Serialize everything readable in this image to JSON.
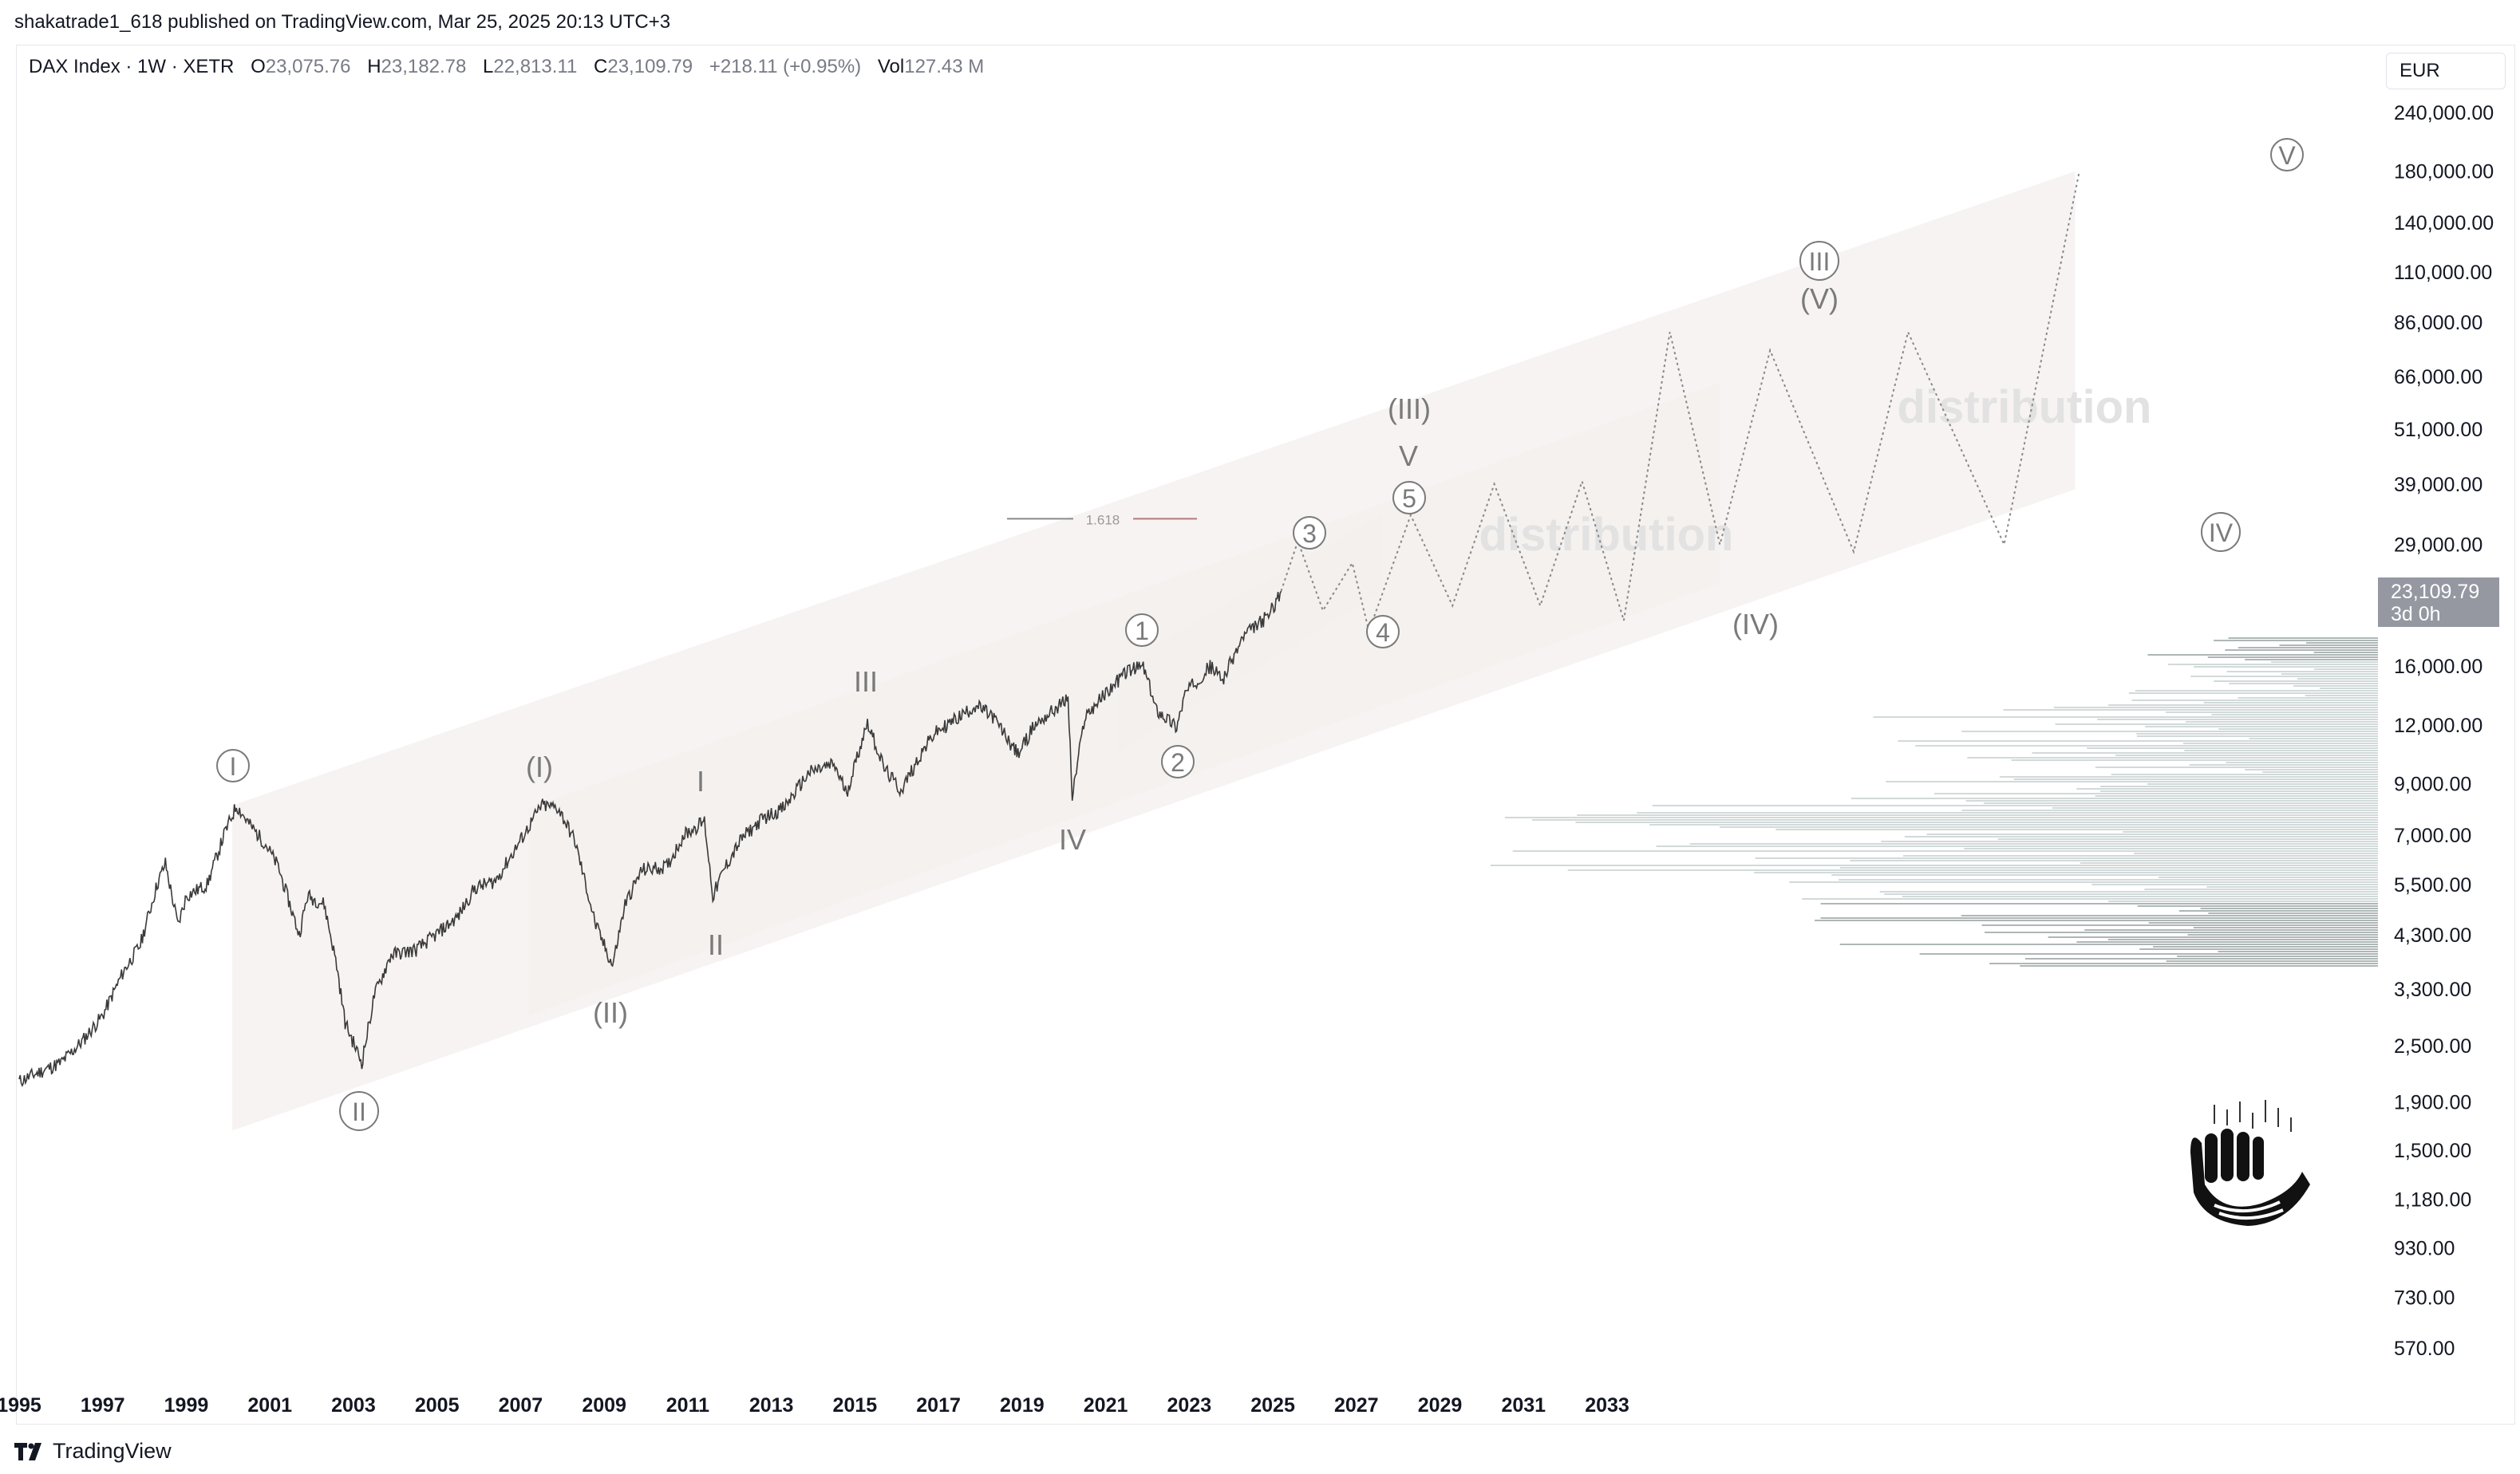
{
  "header": {
    "published_text": "shakatrade1_618 published on TradingView.com, Mar 25, 2025 20:13 UTC+3"
  },
  "legend": {
    "symbol": "DAX Index · 1W · XETR",
    "o_label": "O",
    "o_value": "23,075.76",
    "h_label": "H",
    "h_value": "23,182.78",
    "l_label": "L",
    "l_value": "22,813.11",
    "c_label": "C",
    "c_value": "23,109.79",
    "change": "+218.11 (+0.95%)",
    "vol_label": "Vol",
    "vol_value": "127.43 M"
  },
  "currency": "EUR",
  "price_tag": {
    "price": "23,109.79",
    "countdown": "3d 0h"
  },
  "footer": {
    "brand": "TradingView"
  },
  "colors": {
    "candles": "#3a3a3a",
    "projection": "#888888",
    "channel_fill": "#f3eeec",
    "distribution_text": "#e2e2e2",
    "label": "#7a7a7a",
    "fib_line": "#b27a7a"
  },
  "chart_data": {
    "type": "line",
    "instrument": "DAX Index",
    "scale": "log",
    "y_ticks": [
      "240,000.00",
      "180,000.00",
      "140,000.00",
      "110,000.00",
      "86,000.00",
      "66,000.00",
      "51,000.00",
      "39,000.00",
      "29,000.00",
      "16,000.00",
      "12,000.00",
      "9,000.00",
      "7,000.00",
      "5,500.00",
      "4,300.00",
      "3,300.00",
      "2,500.00",
      "1,900.00",
      "1,500.00",
      "1,180.00",
      "930.00",
      "730.00",
      "570.00"
    ],
    "x_ticks": [
      "1995",
      "1997",
      "1999",
      "2001",
      "2003",
      "2005",
      "2007",
      "2009",
      "2011",
      "2013",
      "2015",
      "2017",
      "2019",
      "2021",
      "2023",
      "2025",
      "2027",
      "2029",
      "2031",
      "2033"
    ],
    "price_series": [
      [
        1995.0,
        2100
      ],
      [
        1995.5,
        2200
      ],
      [
        1996.0,
        2300
      ],
      [
        1996.5,
        2550
      ],
      [
        1997.0,
        2900
      ],
      [
        1997.5,
        3600
      ],
      [
        1997.9,
        4100
      ],
      [
        1998.3,
        5500
      ],
      [
        1998.5,
        6100
      ],
      [
        1998.8,
        4500
      ],
      [
        1999.0,
        5200
      ],
      [
        1999.5,
        5500
      ],
      [
        1999.9,
        7000
      ],
      [
        2000.2,
        8100
      ],
      [
        2000.5,
        7400
      ],
      [
        2000.9,
        6700
      ],
      [
        2001.2,
        6000
      ],
      [
        2001.7,
        4300
      ],
      [
        2001.9,
        5200
      ],
      [
        2002.3,
        5000
      ],
      [
        2002.6,
        3700
      ],
      [
        2002.8,
        2800
      ],
      [
        2003.2,
        2300
      ],
      [
        2003.5,
        3200
      ],
      [
        2003.9,
        3900
      ],
      [
        2004.5,
        4000
      ],
      [
        2004.9,
        4250
      ],
      [
        2005.5,
        4700
      ],
      [
        2005.9,
        5400
      ],
      [
        2006.4,
        5600
      ],
      [
        2006.9,
        6600
      ],
      [
        2007.5,
        8100
      ],
      [
        2007.9,
        8000
      ],
      [
        2008.3,
        6800
      ],
      [
        2008.8,
        4500
      ],
      [
        2009.2,
        3700
      ],
      [
        2009.5,
        5000
      ],
      [
        2009.9,
        5900
      ],
      [
        2010.5,
        6000
      ],
      [
        2010.9,
        7000
      ],
      [
        2011.4,
        7500
      ],
      [
        2011.6,
        5200
      ],
      [
        2011.9,
        6000
      ],
      [
        2012.3,
        6900
      ],
      [
        2012.8,
        7600
      ],
      [
        2013.3,
        8000
      ],
      [
        2013.9,
        9500
      ],
      [
        2014.5,
        9900
      ],
      [
        2014.8,
        8600
      ],
      [
        2015.3,
        12200
      ],
      [
        2015.7,
        9700
      ],
      [
        2016.1,
        8700
      ],
      [
        2016.6,
        10500
      ],
      [
        2016.9,
        11500
      ],
      [
        2017.5,
        12500
      ],
      [
        2017.9,
        13200
      ],
      [
        2018.3,
        12500
      ],
      [
        2018.9,
        10400
      ],
      [
        2019.3,
        12000
      ],
      [
        2019.9,
        13200
      ],
      [
        2020.1,
        13700
      ],
      [
        2020.2,
        8400
      ],
      [
        2020.5,
        12500
      ],
      [
        2020.9,
        13700
      ],
      [
        2021.5,
        15600
      ],
      [
        2021.9,
        16000
      ],
      [
        2022.2,
        13000
      ],
      [
        2022.7,
        11900
      ],
      [
        2022.9,
        14000
      ],
      [
        2023.5,
        16000
      ],
      [
        2023.8,
        15000
      ],
      [
        2024.3,
        18500
      ],
      [
        2024.9,
        20500
      ],
      [
        2025.2,
        23100
      ]
    ],
    "projection_path": [
      [
        2025.2,
        23100
      ],
      [
        2025.6,
        29500
      ],
      [
        2026.2,
        21000
      ],
      [
        2026.9,
        26500
      ],
      [
        2027.3,
        19000
      ],
      [
        2028.3,
        33500
      ],
      [
        2029.3,
        21500
      ],
      [
        2030.3,
        39000
      ],
      [
        2031.4,
        21500
      ],
      [
        2032.4,
        39500
      ],
      [
        2033.4,
        20000
      ],
      [
        2034.5,
        82000
      ],
      [
        2035.7,
        29000
      ],
      [
        2036.9,
        75000
      ],
      [
        2038.9,
        28000
      ],
      [
        2040.2,
        82000
      ],
      [
        2042.5,
        29000
      ],
      [
        2044.3,
        180000
      ]
    ],
    "fib_level": {
      "label": "1.618",
      "value": 29500
    },
    "wave_labels": [
      {
        "text": "I",
        "style": "circle"
      },
      {
        "text": "II",
        "style": "circle"
      },
      {
        "text": "(I)",
        "style": "plain"
      },
      {
        "text": "(II)",
        "style": "plain"
      },
      {
        "text": "I",
        "style": "plain"
      },
      {
        "text": "II",
        "style": "plain"
      },
      {
        "text": "III",
        "style": "plain"
      },
      {
        "text": "IV",
        "style": "plain"
      },
      {
        "text": "1",
        "style": "circle"
      },
      {
        "text": "2",
        "style": "circle"
      },
      {
        "text": "3",
        "style": "circle"
      },
      {
        "text": "4",
        "style": "circle"
      },
      {
        "text": "5",
        "style": "circle"
      },
      {
        "text": "V",
        "style": "plain"
      },
      {
        "text": "(III)",
        "style": "plain"
      },
      {
        "text": "(IV)",
        "style": "plain"
      },
      {
        "text": "III",
        "style": "circle"
      },
      {
        "text": "(V)",
        "style": "plain"
      },
      {
        "text": "IV",
        "style": "circle"
      },
      {
        "text": "V",
        "style": "circle"
      }
    ],
    "annotations": [
      "distribution",
      "distribution"
    ],
    "grid": false
  }
}
